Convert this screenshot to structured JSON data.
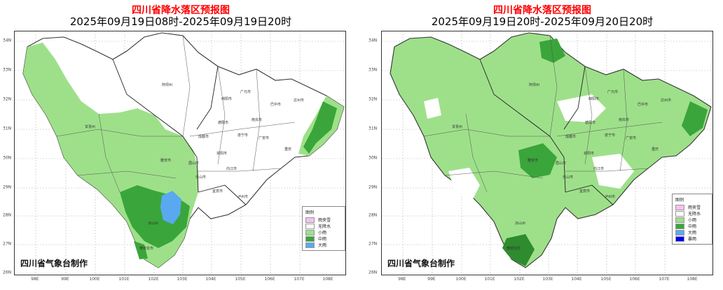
{
  "panels": [
    {
      "title": "四川省降水落区预报图",
      "subtitle": "2025年09月19日08时-2025年09月19日20时",
      "maker": "四川省气象台制作",
      "legend": {
        "title": "图例",
        "items": [
          {
            "label": "雨夹雪",
            "color": "#f5c2f0"
          },
          {
            "label": "无降水",
            "color": "#ffffff"
          },
          {
            "label": "小雨",
            "color": "#9ee08a"
          },
          {
            "label": "中雨",
            "color": "#3aa53a"
          },
          {
            "label": "大雨",
            "color": "#5aa9f0"
          }
        ]
      },
      "y_ticks": [
        "34N",
        "33N",
        "32N",
        "31N",
        "30N",
        "29N",
        "28N",
        "27N",
        "26N"
      ],
      "x_ticks": [
        "98E",
        "99E",
        "100E",
        "101E",
        "102E",
        "103E",
        "104E",
        "105E",
        "106E",
        "107E",
        "108E"
      ],
      "cities": [
        "阿坝州",
        "绵阳市",
        "广元市",
        "巴中市",
        "达州市",
        "南充市",
        "德阳市",
        "甘孜州",
        "成都市",
        "遂宁市",
        "广安市",
        "雅安市",
        "眉山市",
        "资阳市",
        "内江市",
        "重庆",
        "乐山市",
        "宜宾市",
        "泸州市",
        "凉山州",
        "攀枝花市"
      ]
    },
    {
      "title": "四川省降水落区预报图",
      "subtitle": "2025年09月19日20时-2025年09月20日20时",
      "maker": "四川省气象台制作",
      "legend": {
        "title": "图例",
        "items": [
          {
            "label": "雨夹雪",
            "color": "#f5c2f0"
          },
          {
            "label": "无降水",
            "color": "#ffffff"
          },
          {
            "label": "小雨",
            "color": "#9ee08a"
          },
          {
            "label": "中雨",
            "color": "#3aa53a"
          },
          {
            "label": "大雨",
            "color": "#5aa9f0"
          },
          {
            "label": "暴雨",
            "color": "#0000ee"
          }
        ]
      },
      "y_ticks": [
        "34N",
        "33N",
        "32N",
        "31N",
        "30N",
        "29N",
        "28N",
        "27N",
        "26N"
      ],
      "x_ticks": [
        "98E",
        "99E",
        "100E",
        "101E",
        "102E",
        "103E",
        "104E",
        "105E",
        "106E",
        "107E",
        "108E"
      ],
      "cities": [
        "阿坝州",
        "绵阳市",
        "广元市",
        "巴中市",
        "达州市",
        "南充市",
        "德阳市",
        "甘孜州",
        "成都市",
        "遂宁市",
        "广安市",
        "雅安市",
        "眉山市",
        "资阳市",
        "内江市",
        "重庆",
        "乐山市",
        "宜宾市",
        "泸州市",
        "凉山州",
        "攀枝花市"
      ]
    }
  ]
}
